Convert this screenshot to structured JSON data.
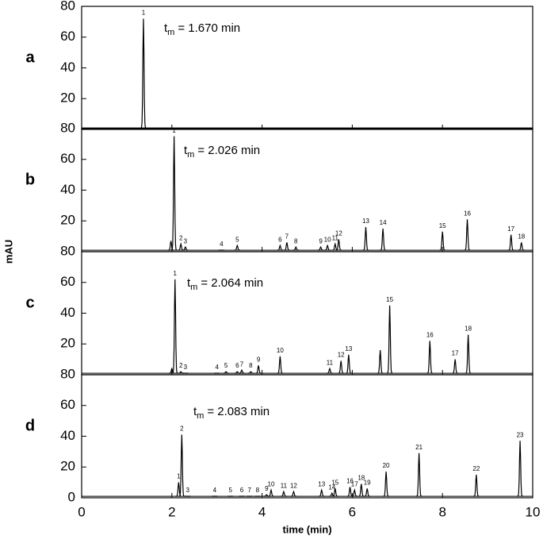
{
  "chart_data": [
    {
      "type": "line",
      "panel_label": "a",
      "color": "#000000",
      "baseline": 1,
      "annotation": {
        "symbol": "t",
        "subscript": "m",
        "text": "= 1.670 min"
      },
      "xlim": [
        0,
        10
      ],
      "xticks": [
        0,
        2,
        4,
        6,
        8,
        10
      ],
      "ylim": [
        0,
        80
      ],
      "yticks": [
        20,
        40,
        60,
        80
      ],
      "peaks": [
        {
          "label": "1",
          "time": 1.37,
          "height": 72
        }
      ]
    },
    {
      "type": "line",
      "panel_label": "b",
      "color": "#000000",
      "baseline": 1,
      "annotation": {
        "symbol": "t",
        "subscript": "m",
        "text": "= 2.026 min"
      },
      "xlim": [
        0,
        10
      ],
      "xticks": [
        0,
        2,
        4,
        6,
        8,
        10
      ],
      "ylim": [
        0,
        80
      ],
      "yticks": [
        20,
        40,
        60,
        80
      ],
      "peaks": [
        {
          "label": null,
          "time": 1.98,
          "height": 7
        },
        {
          "label": "1",
          "time": 2.05,
          "height": 75
        },
        {
          "label": "2",
          "time": 2.2,
          "height": 5
        },
        {
          "label": "3",
          "time": 2.3,
          "height": 3
        },
        {
          "label": "4",
          "time": 3.1,
          "height": 1
        },
        {
          "label": "5",
          "time": 3.45,
          "height": 4
        },
        {
          "label": "6",
          "time": 4.4,
          "height": 4
        },
        {
          "label": "7",
          "time": 4.55,
          "height": 6
        },
        {
          "label": "8",
          "time": 4.75,
          "height": 3
        },
        {
          "label": "9",
          "time": 5.3,
          "height": 3
        },
        {
          "label": "10",
          "time": 5.45,
          "height": 4
        },
        {
          "label": "11",
          "time": 5.62,
          "height": 5
        },
        {
          "label": "12",
          "time": 5.7,
          "height": 8
        },
        {
          "label": "13",
          "time": 6.3,
          "height": 16
        },
        {
          "label": "14",
          "time": 6.68,
          "height": 15
        },
        {
          "label": "15",
          "time": 8.0,
          "height": 13
        },
        {
          "label": "16",
          "time": 8.55,
          "height": 21
        },
        {
          "label": "17",
          "time": 9.52,
          "height": 11
        },
        {
          "label": "18",
          "time": 9.75,
          "height": 6
        }
      ]
    },
    {
      "type": "line",
      "panel_label": "c",
      "color": "#000000",
      "baseline": 1,
      "y_label": "mAU",
      "annotation": {
        "symbol": "t",
        "subscript": "m",
        "text": "= 2.064 min"
      },
      "xlim": [
        0,
        10
      ],
      "xticks": [
        0,
        2,
        4,
        6,
        8,
        10
      ],
      "ylim": [
        0,
        80
      ],
      "yticks": [
        20,
        40,
        60,
        80
      ],
      "peaks": [
        {
          "label": null,
          "time": 2.0,
          "height": 4
        },
        {
          "label": "1",
          "time": 2.07,
          "height": 62
        },
        {
          "label": "2",
          "time": 2.2,
          "height": 2
        },
        {
          "label": "3",
          "time": 2.3,
          "height": 1
        },
        {
          "label": "4",
          "time": 3.0,
          "height": 1
        },
        {
          "label": "5",
          "time": 3.2,
          "height": 2
        },
        {
          "label": "6",
          "time": 3.45,
          "height": 2
        },
        {
          "label": "7",
          "time": 3.55,
          "height": 3
        },
        {
          "label": "8",
          "time": 3.75,
          "height": 2
        },
        {
          "label": "9",
          "time": 3.92,
          "height": 6
        },
        {
          "label": "10",
          "time": 4.4,
          "height": 12
        },
        {
          "label": "11",
          "time": 5.5,
          "height": 4
        },
        {
          "label": "12",
          "time": 5.75,
          "height": 9
        },
        {
          "label": "13",
          "time": 5.92,
          "height": 13
        },
        {
          "label": null,
          "time": 6.62,
          "height": 16
        },
        {
          "label": "15",
          "time": 6.83,
          "height": 45
        },
        {
          "label": "16",
          "time": 7.72,
          "height": 22
        },
        {
          "label": "17",
          "time": 8.28,
          "height": 10
        },
        {
          "label": "18",
          "time": 8.57,
          "height": 26
        }
      ]
    },
    {
      "type": "line",
      "panel_label": "d",
      "color": "#000000",
      "baseline": 1,
      "x_label": "time (min)",
      "annotation": {
        "symbol": "t",
        "subscript": "m",
        "text": "= 2.083 min"
      },
      "xlim": [
        0,
        10
      ],
      "xticks": [
        0,
        2,
        4,
        6,
        8,
        10
      ],
      "ylim": [
        0,
        80
      ],
      "yticks": [
        0,
        20,
        40,
        60,
        80
      ],
      "peaks": [
        {
          "label": "1",
          "time": 2.15,
          "height": 10
        },
        {
          "label": "2",
          "time": 2.22,
          "height": 41
        },
        {
          "label": "3",
          "time": 2.35,
          "height": 1
        },
        {
          "label": "4",
          "time": 2.95,
          "height": 1
        },
        {
          "label": "5",
          "time": 3.3,
          "height": 1
        },
        {
          "label": "6",
          "time": 3.55,
          "height": 1
        },
        {
          "label": "7",
          "time": 3.72,
          "height": 1
        },
        {
          "label": "8",
          "time": 3.9,
          "height": 1
        },
        {
          "label": "9",
          "time": 4.1,
          "height": 2
        },
        {
          "label": "10",
          "time": 4.2,
          "height": 5
        },
        {
          "label": "11",
          "time": 4.48,
          "height": 4
        },
        {
          "label": "12",
          "time": 4.7,
          "height": 4
        },
        {
          "label": "13",
          "time": 5.32,
          "height": 5
        },
        {
          "label": "14",
          "time": 5.55,
          "height": 3
        },
        {
          "label": "15",
          "time": 5.62,
          "height": 6
        },
        {
          "label": "16",
          "time": 5.95,
          "height": 7
        },
        {
          "label": "17",
          "time": 6.05,
          "height": 5
        },
        {
          "label": "18",
          "time": 6.2,
          "height": 9
        },
        {
          "label": "19",
          "time": 6.33,
          "height": 6
        },
        {
          "label": "20",
          "time": 6.75,
          "height": 17
        },
        {
          "label": "21",
          "time": 7.48,
          "height": 29
        },
        {
          "label": "22",
          "time": 8.75,
          "height": 15
        },
        {
          "label": "23",
          "time": 9.72,
          "height": 37
        }
      ]
    }
  ]
}
